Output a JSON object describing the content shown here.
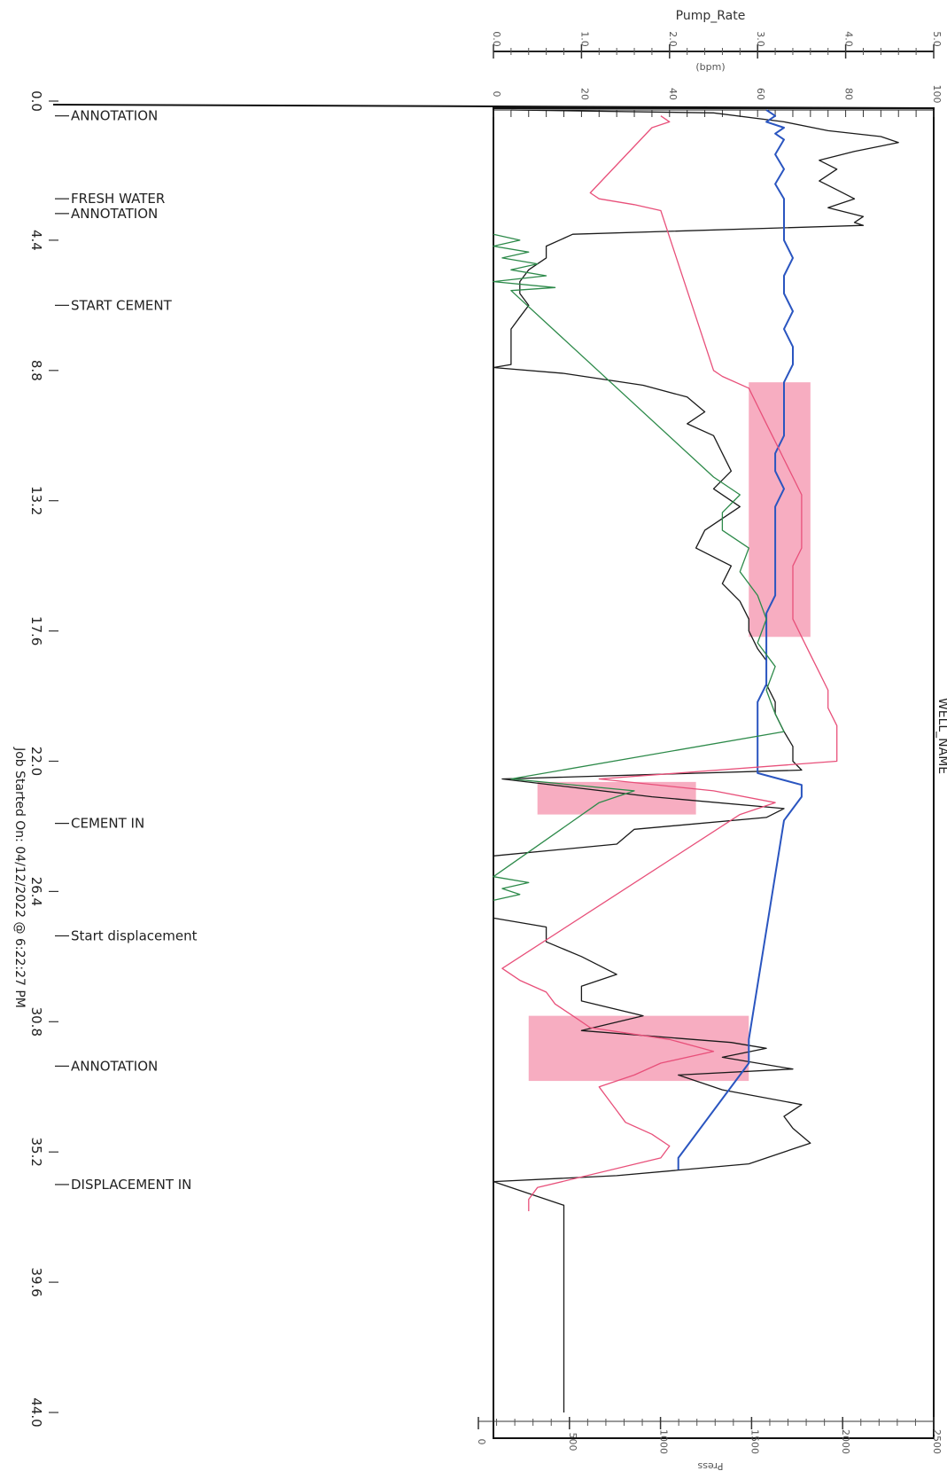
{
  "chart_data": {
    "type": "line",
    "orientation": "rotated-90",
    "title": "",
    "well_label": "WELL_NAME",
    "job_started": "Job Started On: 04/12/2022 @ 6:22:27 PM",
    "time_axis": {
      "ticks": [
        "0.0",
        "4.4",
        "8.8",
        "13.2",
        "17.6",
        "22.0",
        "26.4",
        "30.8",
        "35.2",
        "39.6",
        "44.0"
      ],
      "range": [
        0,
        44
      ]
    },
    "top_axis": {
      "label": "Pump_Rate",
      "unit": "(bpm)",
      "ticks": [
        "0.0",
        "1.0",
        "2.0",
        "3.0",
        "4.0",
        "5.0"
      ],
      "range": [
        0,
        5
      ]
    },
    "top_axis_2": {
      "ticks": [
        "0",
        "20",
        "40",
        "60",
        "80",
        "100"
      ],
      "range": [
        0,
        100
      ]
    },
    "bottom_axis": {
      "label": "Press",
      "ticks": [
        "0",
        "500",
        "1000",
        "1500",
        "2000",
        "2500"
      ],
      "range": [
        0,
        2500
      ]
    },
    "annotations": [
      {
        "time": 0.2,
        "label": "ANNOTATION"
      },
      {
        "time": 3.0,
        "label": "FRESH WATER"
      },
      {
        "time": 3.5,
        "label": "ANNOTATION"
      },
      {
        "time": 6.6,
        "label": "START CEMENT"
      },
      {
        "time": 24.1,
        "label": "CEMENT IN"
      },
      {
        "time": 27.9,
        "label": "Start displacement"
      },
      {
        "time": 32.3,
        "label": "ANNOTATION"
      },
      {
        "time": 36.3,
        "label": "DISPLACEMENT IN"
      }
    ],
    "series": [
      {
        "color": "#1a1a1a",
        "points": [
          [
            0.0,
            0.2
          ],
          [
            0.1,
            2.5
          ],
          [
            0.4,
            3.3
          ],
          [
            0.7,
            3.8
          ],
          [
            0.9,
            4.4
          ],
          [
            1.1,
            4.6
          ],
          [
            1.4,
            4.1
          ],
          [
            1.7,
            3.7
          ],
          [
            2.0,
            3.9
          ],
          [
            2.4,
            3.7
          ],
          [
            2.7,
            3.9
          ],
          [
            3.0,
            4.1
          ],
          [
            3.3,
            3.8
          ],
          [
            3.6,
            4.2
          ],
          [
            3.8,
            4.1
          ],
          [
            3.9,
            4.2
          ],
          [
            4.2,
            0.9
          ],
          [
            4.6,
            0.6
          ],
          [
            5.0,
            0.6
          ],
          [
            5.4,
            0.4
          ],
          [
            5.8,
            0.3
          ],
          [
            6.2,
            0.3
          ],
          [
            6.6,
            0.4
          ],
          [
            7.0,
            0.3
          ],
          [
            7.4,
            0.2
          ],
          [
            7.8,
            0.2
          ],
          [
            8.2,
            0.2
          ],
          [
            8.6,
            0.2
          ],
          [
            8.7,
            0.0
          ],
          [
            8.9,
            0.8
          ],
          [
            9.3,
            1.7
          ],
          [
            9.7,
            2.2
          ],
          [
            10.2,
            2.4
          ],
          [
            10.6,
            2.2
          ],
          [
            11.0,
            2.5
          ],
          [
            11.6,
            2.6
          ],
          [
            12.2,
            2.7
          ],
          [
            12.8,
            2.5
          ],
          [
            13.4,
            2.8
          ],
          [
            14.2,
            2.4
          ],
          [
            14.8,
            2.3
          ],
          [
            15.4,
            2.7
          ],
          [
            16.0,
            2.6
          ],
          [
            16.6,
            2.8
          ],
          [
            17.2,
            2.9
          ],
          [
            17.6,
            2.9
          ],
          [
            18.2,
            3.0
          ],
          [
            18.6,
            3.1
          ],
          [
            19.0,
            3.1
          ],
          [
            19.4,
            3.1
          ],
          [
            20.0,
            3.2
          ],
          [
            20.4,
            3.2
          ],
          [
            21.0,
            3.3
          ],
          [
            21.5,
            3.4
          ],
          [
            22.0,
            3.4
          ],
          [
            22.3,
            3.5
          ],
          [
            22.6,
            0.1
          ],
          [
            23.2,
            1.8
          ],
          [
            23.6,
            3.3
          ],
          [
            23.9,
            3.1
          ],
          [
            24.3,
            1.6
          ],
          [
            24.8,
            1.4
          ],
          [
            25.2,
            0.0
          ],
          [
            25.8,
            0.0
          ],
          [
            26.3,
            0.0
          ],
          [
            26.6,
            0.0
          ],
          [
            27.3,
            0.0
          ],
          [
            27.6,
            0.6
          ],
          [
            28.1,
            0.6
          ],
          [
            28.6,
            1.0
          ],
          [
            29.2,
            1.4
          ],
          [
            29.6,
            1.0
          ],
          [
            30.1,
            1.0
          ],
          [
            30.6,
            1.7
          ],
          [
            31.1,
            1.0
          ],
          [
            31.5,
            2.7
          ],
          [
            31.7,
            3.1
          ],
          [
            32.0,
            2.6
          ],
          [
            32.4,
            3.4
          ],
          [
            32.6,
            2.1
          ],
          [
            33.1,
            2.6
          ],
          [
            33.6,
            3.5
          ],
          [
            34.0,
            3.3
          ],
          [
            34.4,
            3.4
          ],
          [
            34.9,
            3.6
          ],
          [
            35.2,
            3.3
          ],
          [
            35.6,
            2.9
          ],
          [
            36.0,
            1.4
          ],
          [
            36.2,
            0.0
          ],
          [
            37.0,
            0.8
          ],
          [
            38.0,
            0.8
          ],
          [
            39.0,
            0.8
          ],
          [
            40.0,
            0.8
          ],
          [
            41.0,
            0.8
          ],
          [
            42.0,
            0.8
          ],
          [
            43.0,
            0.8
          ],
          [
            44.0,
            0.8
          ]
        ]
      },
      {
        "color": "#2a55c0",
        "points": [
          [
            0.0,
            3.1
          ],
          [
            0.2,
            3.2
          ],
          [
            0.4,
            3.1
          ],
          [
            0.6,
            3.3
          ],
          [
            0.8,
            3.2
          ],
          [
            1.0,
            3.3
          ],
          [
            1.5,
            3.2
          ],
          [
            2.0,
            3.3
          ],
          [
            2.5,
            3.2
          ],
          [
            3.0,
            3.3
          ],
          [
            3.5,
            3.3
          ],
          [
            4.0,
            3.3
          ],
          [
            4.4,
            3.3
          ],
          [
            5.0,
            3.4
          ],
          [
            5.6,
            3.3
          ],
          [
            6.2,
            3.3
          ],
          [
            6.8,
            3.4
          ],
          [
            7.4,
            3.3
          ],
          [
            8.0,
            3.4
          ],
          [
            8.6,
            3.4
          ],
          [
            9.2,
            3.3
          ],
          [
            9.8,
            3.3
          ],
          [
            10.4,
            3.3
          ],
          [
            11.0,
            3.3
          ],
          [
            11.6,
            3.2
          ],
          [
            12.2,
            3.2
          ],
          [
            12.8,
            3.3
          ],
          [
            13.4,
            3.2
          ],
          [
            14.0,
            3.2
          ],
          [
            14.6,
            3.2
          ],
          [
            15.2,
            3.2
          ],
          [
            15.8,
            3.2
          ],
          [
            16.4,
            3.2
          ],
          [
            17.0,
            3.1
          ],
          [
            17.6,
            3.1
          ],
          [
            18.2,
            3.1
          ],
          [
            18.8,
            3.1
          ],
          [
            19.4,
            3.1
          ],
          [
            20.0,
            3.0
          ],
          [
            20.6,
            3.0
          ],
          [
            21.2,
            3.0
          ],
          [
            21.8,
            3.0
          ],
          [
            22.4,
            3.0
          ],
          [
            22.8,
            3.5
          ],
          [
            23.2,
            3.5
          ],
          [
            23.6,
            3.4
          ],
          [
            24.0,
            3.3
          ],
          [
            31.4,
            2.9
          ],
          [
            31.8,
            2.9
          ],
          [
            32.2,
            2.9
          ],
          [
            35.4,
            2.1
          ],
          [
            35.8,
            2.1
          ]
        ]
      },
      {
        "color": "#2d8a4a",
        "points": [
          [
            4.2,
            0.0
          ],
          [
            4.4,
            0.3
          ],
          [
            4.6,
            0.0
          ],
          [
            4.8,
            0.4
          ],
          [
            5.0,
            0.1
          ],
          [
            5.2,
            0.5
          ],
          [
            5.4,
            0.2
          ],
          [
            5.6,
            0.6
          ],
          [
            5.8,
            0.0
          ],
          [
            6.0,
            0.7
          ],
          [
            6.1,
            0.2
          ],
          [
            12.4,
            2.5
          ],
          [
            13.0,
            2.8
          ],
          [
            13.6,
            2.6
          ],
          [
            14.2,
            2.6
          ],
          [
            14.8,
            2.9
          ],
          [
            15.6,
            2.8
          ],
          [
            16.4,
            3.0
          ],
          [
            17.2,
            3.1
          ],
          [
            18.0,
            3.0
          ],
          [
            18.8,
            3.2
          ],
          [
            19.6,
            3.1
          ],
          [
            20.4,
            3.2
          ],
          [
            21.0,
            3.3
          ],
          [
            22.6,
            0.2
          ],
          [
            23.0,
            1.6
          ],
          [
            23.4,
            1.2
          ],
          [
            25.9,
            0.0
          ],
          [
            26.1,
            0.4
          ],
          [
            26.3,
            0.1
          ],
          [
            26.5,
            0.3
          ],
          [
            26.7,
            0.0
          ]
        ]
      },
      {
        "color": "#e8507a",
        "points": [
          [
            0.2,
            1.9
          ],
          [
            0.4,
            2.0
          ],
          [
            0.6,
            1.8
          ],
          [
            2.8,
            1.1
          ],
          [
            3.0,
            1.2
          ],
          [
            3.2,
            1.6
          ],
          [
            3.4,
            1.9
          ],
          [
            8.8,
            2.5
          ],
          [
            9.0,
            2.6
          ],
          [
            9.4,
            2.9
          ],
          [
            10.0,
            3.0
          ],
          [
            10.6,
            3.1
          ],
          [
            11.2,
            3.2
          ],
          [
            11.8,
            3.3
          ],
          [
            12.4,
            3.4
          ],
          [
            13.0,
            3.5
          ],
          [
            13.6,
            3.5
          ],
          [
            14.2,
            3.5
          ],
          [
            14.8,
            3.5
          ],
          [
            15.4,
            3.4
          ],
          [
            16.0,
            3.4
          ],
          [
            16.6,
            3.4
          ],
          [
            17.2,
            3.4
          ],
          [
            17.8,
            3.5
          ],
          [
            18.4,
            3.6
          ],
          [
            19.0,
            3.7
          ],
          [
            19.6,
            3.8
          ],
          [
            20.2,
            3.8
          ],
          [
            20.8,
            3.9
          ],
          [
            21.4,
            3.9
          ],
          [
            22.0,
            3.9
          ],
          [
            22.6,
            1.2
          ],
          [
            23.0,
            2.5
          ],
          [
            23.4,
            3.2
          ],
          [
            23.8,
            2.8
          ],
          [
            29.0,
            0.1
          ],
          [
            29.4,
            0.3
          ],
          [
            29.8,
            0.6
          ],
          [
            30.2,
            0.7
          ],
          [
            30.6,
            0.9
          ],
          [
            31.0,
            1.1
          ],
          [
            31.4,
            2.0
          ],
          [
            31.8,
            2.5
          ],
          [
            32.2,
            1.9
          ],
          [
            32.6,
            1.6
          ],
          [
            33.0,
            1.2
          ],
          [
            33.4,
            1.3
          ],
          [
            33.8,
            1.4
          ],
          [
            34.2,
            1.5
          ],
          [
            34.6,
            1.8
          ],
          [
            35.0,
            2.0
          ],
          [
            35.4,
            1.9
          ],
          [
            36.4,
            0.5
          ],
          [
            36.8,
            0.4
          ],
          [
            37.2,
            0.4
          ]
        ]
      }
    ],
    "pink_fill_bands": [
      {
        "from": 9.2,
        "to": 17.8,
        "low": 2.9,
        "high": 3.6
      },
      {
        "from": 22.7,
        "to": 23.8,
        "low": 0.5,
        "high": 2.3
      },
      {
        "from": 30.6,
        "to": 32.8,
        "low": 0.4,
        "high": 2.9
      }
    ]
  }
}
